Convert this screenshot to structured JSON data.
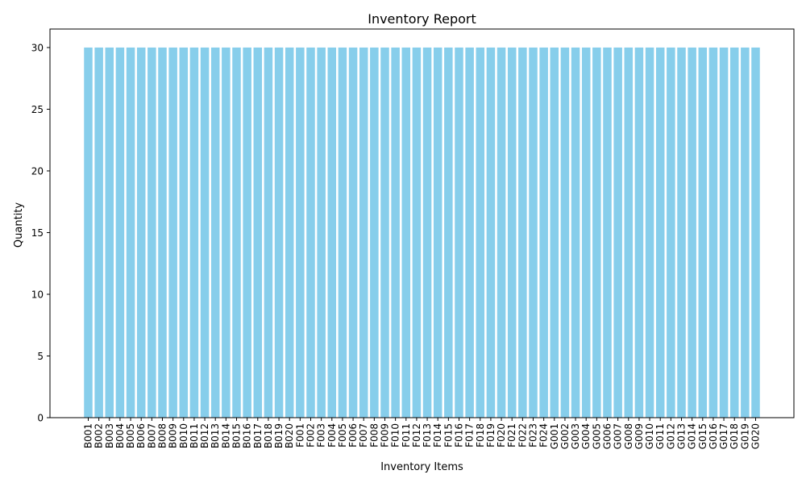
{
  "chart_data": {
    "type": "bar",
    "title": "Inventory Report",
    "xlabel": "Inventory Items",
    "ylabel": "Quantity",
    "ylim": [
      0,
      31.5
    ],
    "yticks": [
      0,
      5,
      10,
      15,
      20,
      25,
      30
    ],
    "grid": false,
    "bar_color": "#87ceeb",
    "categories": [
      "B001",
      "B002",
      "B003",
      "B004",
      "B005",
      "B006",
      "B007",
      "B008",
      "B009",
      "B010",
      "B011",
      "B012",
      "B013",
      "B014",
      "B015",
      "B016",
      "B017",
      "B018",
      "B019",
      "B020",
      "F001",
      "F002",
      "F003",
      "F004",
      "F005",
      "F006",
      "F007",
      "F008",
      "F009",
      "F010",
      "F011",
      "F012",
      "F013",
      "F014",
      "F015",
      "F016",
      "F017",
      "F018",
      "F019",
      "F020",
      "F021",
      "F022",
      "F023",
      "F024",
      "G001",
      "G002",
      "G003",
      "G004",
      "G005",
      "G006",
      "G007",
      "G008",
      "G009",
      "G010",
      "G011",
      "G012",
      "G013",
      "G014",
      "G015",
      "G016",
      "G017",
      "G018",
      "G019",
      "G020"
    ],
    "values": [
      30,
      30,
      30,
      30,
      30,
      30,
      30,
      30,
      30,
      30,
      30,
      30,
      30,
      30,
      30,
      30,
      30,
      30,
      30,
      30,
      30,
      30,
      30,
      30,
      30,
      30,
      30,
      30,
      30,
      30,
      30,
      30,
      30,
      30,
      30,
      30,
      30,
      30,
      30,
      30,
      30,
      30,
      30,
      30,
      30,
      30,
      30,
      30,
      30,
      30,
      30,
      30,
      30,
      30,
      30,
      30,
      30,
      30,
      30,
      30,
      30,
      30,
      30,
      30
    ]
  }
}
